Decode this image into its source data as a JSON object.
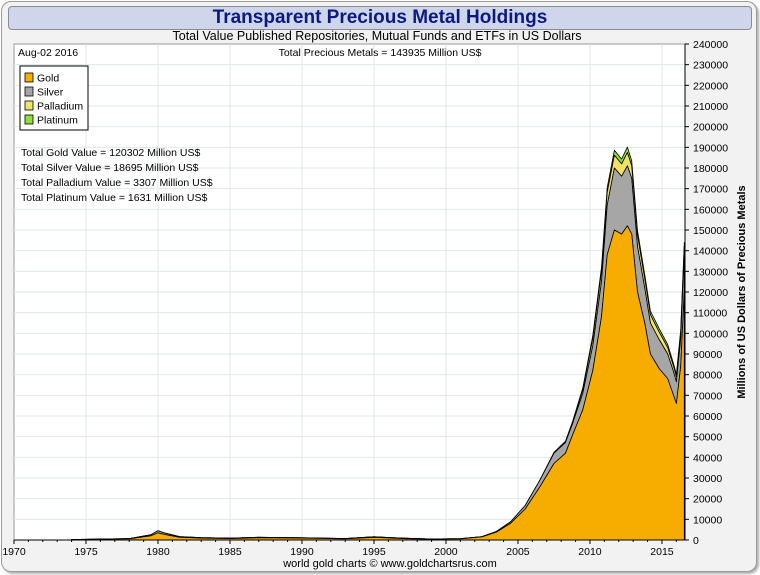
{
  "title": "Transparent Precious Metal Holdings",
  "subtitle": "Total Value Published Repositories, Mutual Funds and ETFs in US Dollars",
  "date_label": "Aug-02  2016",
  "total_label": "Total Precious Metals = 143935 Million US$",
  "footer": "world gold charts © www.goldchartsrus.com",
  "value_lines": [
    "Total Gold Value = 120302 Million US$",
    "Total Silver Value = 18695 Million US$",
    "Total Palladium Value = 3307 Million US$",
    "Total Platinum Value = 1631 Million US$"
  ],
  "colors": {
    "gold": "#f7ac00",
    "silver": "#a6a6a6",
    "palladium": "#f3e066",
    "platinum": "#8ee037",
    "title_text": "#0a1a80",
    "title_bg": "#cfd6ec"
  },
  "chart_data": {
    "type": "area",
    "title": "Transparent Precious Metal Holdings",
    "subtitle": "Total Value Published Repositories, Mutual Funds and ETFs in US Dollars",
    "xlabel": "",
    "ylabel": "Millions of US Dollars of Precious Metals",
    "xlim": [
      1970,
      2016.6
    ],
    "ylim": [
      0,
      240000
    ],
    "x_ticks": [
      1970,
      1975,
      1980,
      1985,
      1990,
      1995,
      2000,
      2005,
      2010,
      2015
    ],
    "y_ticks": [
      0,
      10000,
      20000,
      30000,
      40000,
      50000,
      60000,
      70000,
      80000,
      90000,
      100000,
      110000,
      120000,
      130000,
      140000,
      150000,
      160000,
      170000,
      180000,
      190000,
      200000,
      210000,
      220000,
      230000,
      240000
    ],
    "y_axis_side": "right",
    "grid": true,
    "legend": "top-left",
    "stacked": true,
    "x": [
      1974,
      1978,
      1979.5,
      1980.0,
      1980.5,
      1981.5,
      1983,
      1985,
      1987,
      1990,
      1993,
      1995,
      1997,
      1999,
      2001,
      2002.5,
      2003.5,
      2004.5,
      2005.5,
      2006.5,
      2007.5,
      2008.3,
      2008.8,
      2009.5,
      2010.2,
      2010.8,
      2011.2,
      2011.7,
      2012.2,
      2012.6,
      2012.9,
      2013.3,
      2013.8,
      2014.2,
      2014.8,
      2015.4,
      2015.8,
      2016.0,
      2016.3,
      2016.55
    ],
    "series": [
      {
        "name": "Gold",
        "color": "#f7ac00",
        "values": [
          200,
          600,
          2000,
          3500,
          2600,
          1300,
          900,
          700,
          1100,
          900,
          600,
          1300,
          700,
          400,
          600,
          1500,
          3800,
          8200,
          15000,
          25500,
          37000,
          42000,
          51000,
          63000,
          82000,
          108000,
          138000,
          150000,
          148000,
          152000,
          148000,
          120000,
          105000,
          90000,
          83000,
          78000,
          70000,
          66000,
          84000,
          120302
        ]
      },
      {
        "name": "Silver",
        "color": "#a6a6a6",
        "values": [
          30,
          100,
          500,
          1000,
          700,
          300,
          200,
          150,
          200,
          180,
          120,
          250,
          150,
          90,
          100,
          150,
          300,
          700,
          1700,
          3200,
          5000,
          5200,
          5500,
          8000,
          12000,
          17000,
          24000,
          30000,
          28000,
          29000,
          27000,
          22000,
          17000,
          15000,
          14000,
          12000,
          11500,
          10500,
          13500,
          18695
        ]
      },
      {
        "name": "Palladium",
        "color": "#f3e066",
        "values": [
          0,
          0,
          0,
          0,
          0,
          0,
          0,
          0,
          0,
          0,
          0,
          0,
          0,
          0,
          0,
          0,
          0,
          0,
          0,
          0,
          300,
          400,
          700,
          1800,
          3500,
          5000,
          6200,
          6200,
          6000,
          6500,
          6100,
          5500,
          4500,
          4000,
          3700,
          3100,
          2600,
          2400,
          2800,
          3307
        ]
      },
      {
        "name": "Platinum",
        "color": "#8ee037",
        "values": [
          0,
          0,
          0,
          0,
          0,
          0,
          0,
          0,
          0,
          0,
          0,
          0,
          0,
          0,
          0,
          0,
          0,
          0,
          0,
          0,
          150,
          250,
          350,
          800,
          1500,
          2000,
          2300,
          2400,
          2300,
          2600,
          2500,
          2200,
          2000,
          1800,
          1700,
          1500,
          1300,
          1250,
          1400,
          1631
        ]
      }
    ]
  }
}
